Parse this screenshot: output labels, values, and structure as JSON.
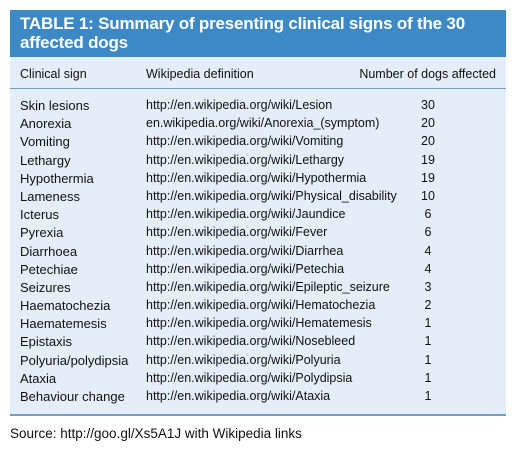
{
  "table": {
    "title": "TABLE 1: Summary of presenting clinical signs of the 30 affected dogs",
    "headers": {
      "sign": "Clinical sign",
      "definition": "Wikipedia definition",
      "count": "Number of dogs affected"
    },
    "rows": [
      {
        "sign": "Skin lesions",
        "definition": "http://en.wikipedia.org/wiki/Lesion",
        "count": "30"
      },
      {
        "sign": "Anorexia",
        "definition": "en.wikipedia.org/wiki/Anorexia_(symptom)",
        "count": "20"
      },
      {
        "sign": "Vomiting",
        "definition": "http://en.wikipedia.org/wiki/Vomiting",
        "count": "20"
      },
      {
        "sign": "Lethargy",
        "definition": "http://en.wikipedia.org/wiki/Lethargy",
        "count": "19"
      },
      {
        "sign": "Hypothermia",
        "definition": "http://en.wikipedia.org/wiki/Hypothermia",
        "count": "19"
      },
      {
        "sign": "Lameness",
        "definition": "http://en.wikipedia.org/wiki/Physical_disability",
        "count": "10"
      },
      {
        "sign": "Icterus",
        "definition": "http://en.wikipedia.org/wiki/Jaundice",
        "count": "6"
      },
      {
        "sign": "Pyrexia",
        "definition": "http://en.wikipedia.org/wiki/Fever",
        "count": "6"
      },
      {
        "sign": "Diarrhoea",
        "definition": "http://en.wikipedia.org/wiki/Diarrhea",
        "count": "4"
      },
      {
        "sign": "Petechiae",
        "definition": "http://en.wikipedia.org/wiki/Petechia",
        "count": "4"
      },
      {
        "sign": "Seizures",
        "definition": "http://en.wikipedia.org/wiki/Epileptic_seizure",
        "count": "3"
      },
      {
        "sign": "Haematochezia",
        "definition": "http://en.wikipedia.org/wiki/Hematochezia",
        "count": "2"
      },
      {
        "sign": "Haematemesis",
        "definition": "http://en.wikipedia.org/wiki/Hematemesis",
        "count": "1"
      },
      {
        "sign": "Epistaxis",
        "definition": "http://en.wikipedia.org/wiki/Nosebleed",
        "count": "1"
      },
      {
        "sign": "Polyuria/polydipsia",
        "definition": "http://en.wikipedia.org/wiki/Polyuria",
        "count": "1"
      },
      {
        "sign": "Ataxia",
        "definition": "http://en.wikipedia.org/wiki/Polydipsia",
        "count": "1"
      },
      {
        "sign": "Behaviour change",
        "definition": "http://en.wikipedia.org/wiki/Ataxia",
        "count": "1"
      }
    ]
  },
  "source": "Source: http://goo.gl/Xs5A1J with Wikipedia links",
  "colors": {
    "title_bg": "#3d89c6",
    "table_bg": "#e3eef8",
    "rule": "#6f9fc8"
  }
}
